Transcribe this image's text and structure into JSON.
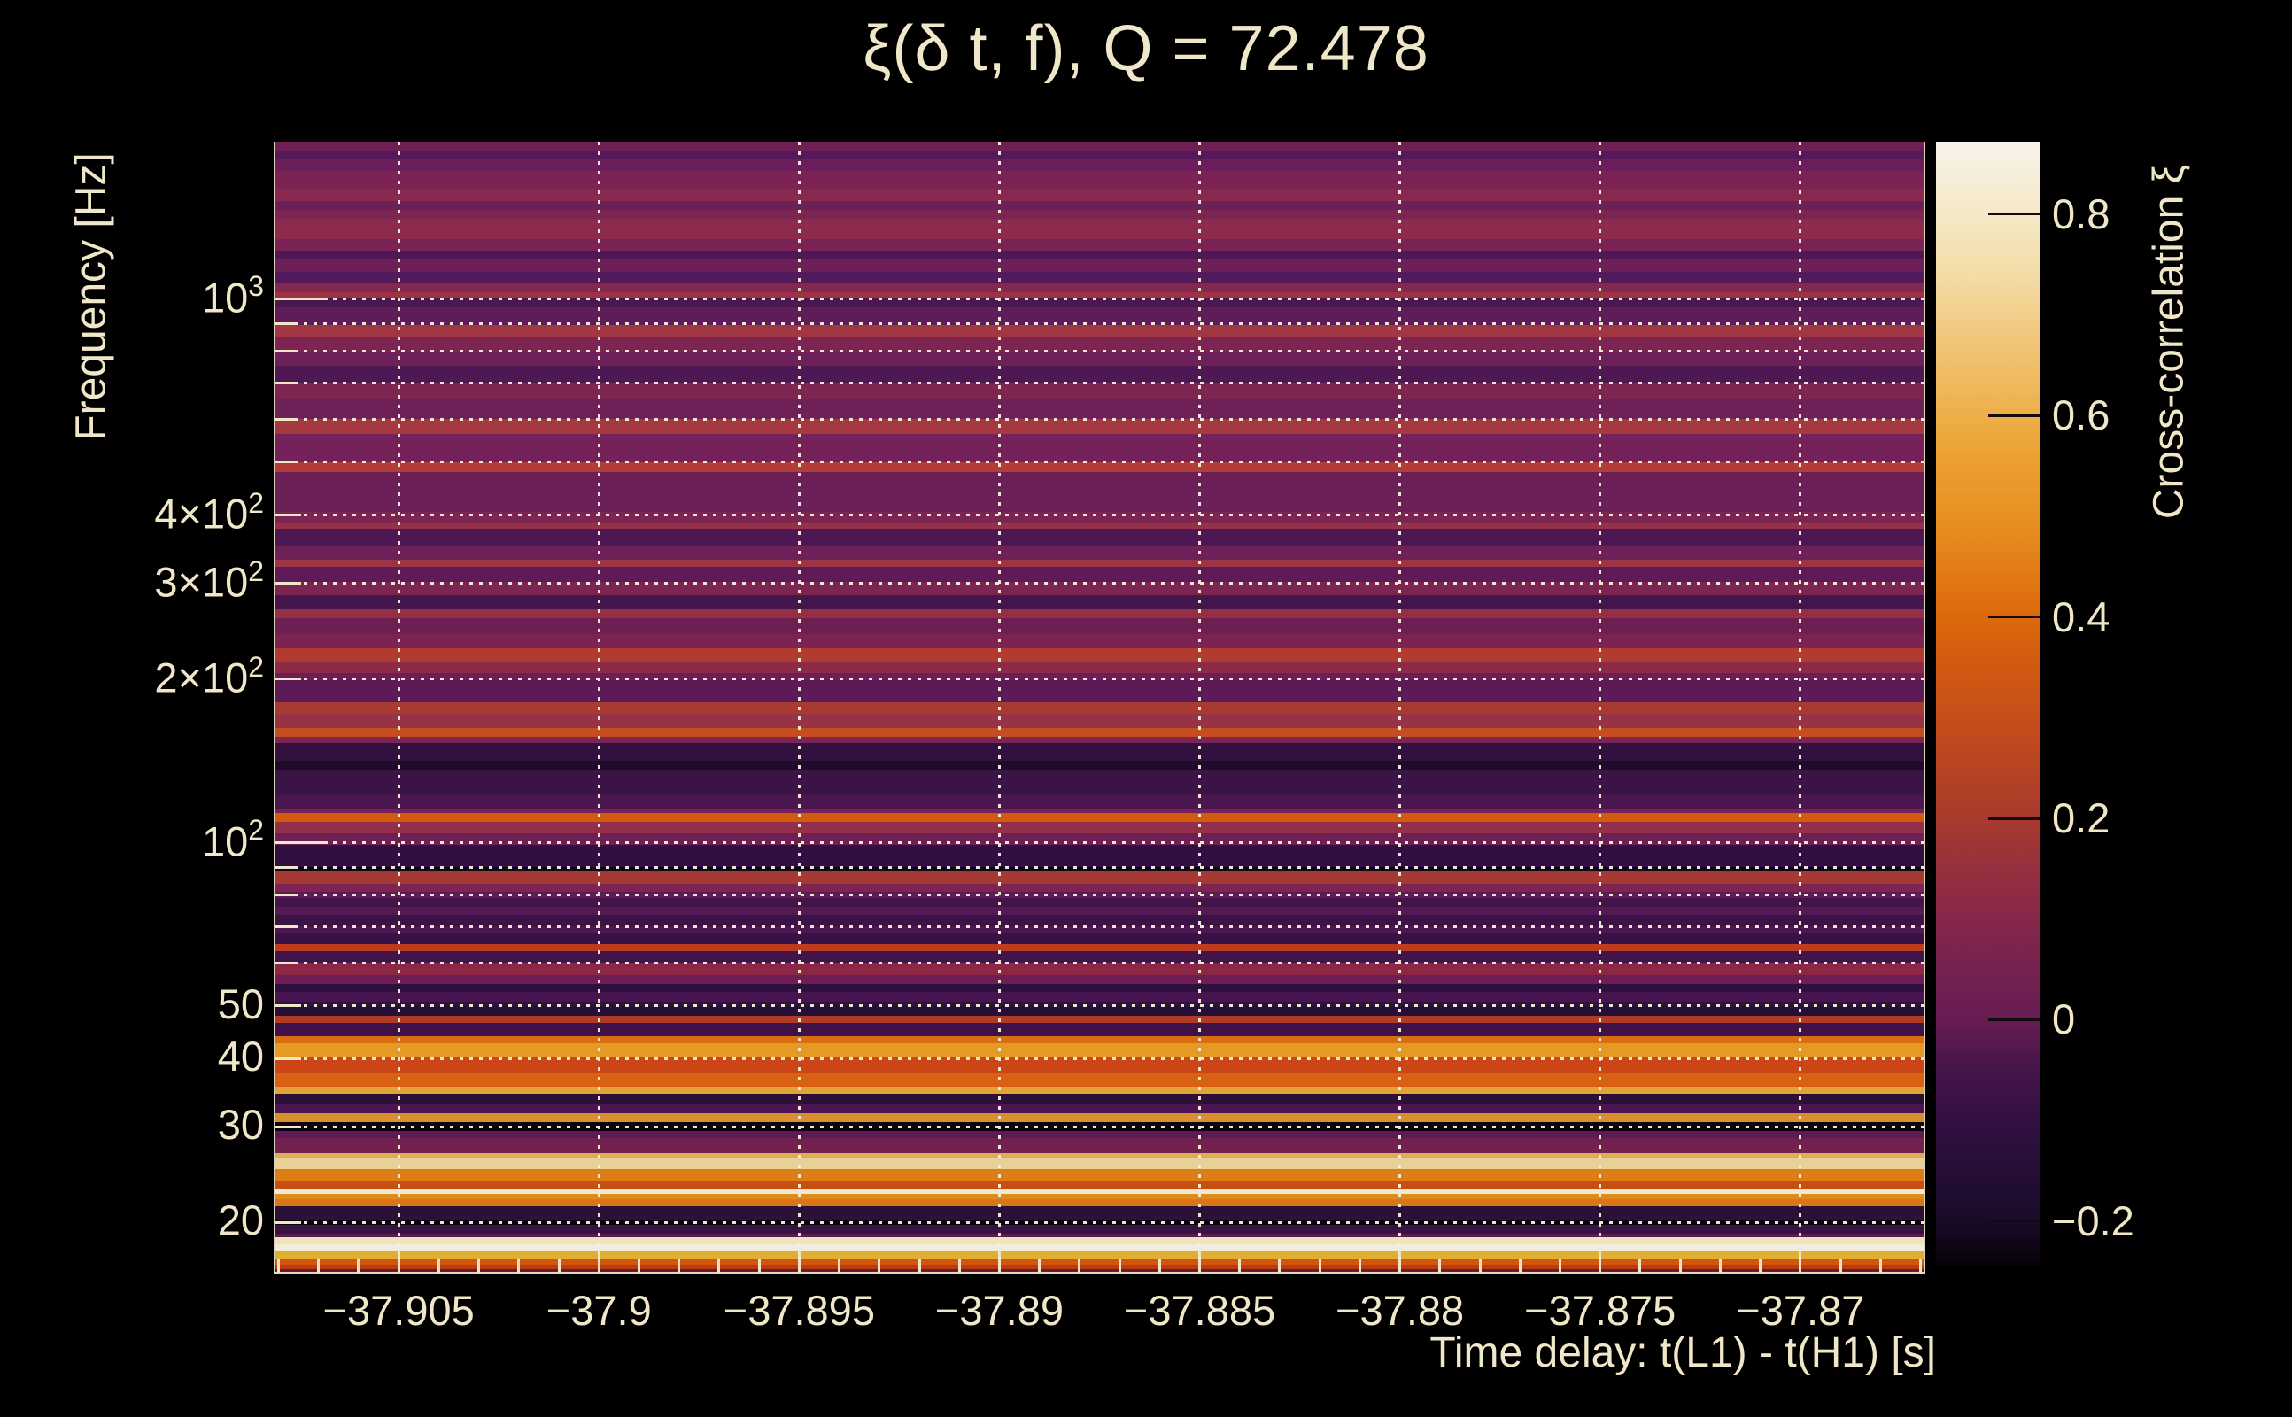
{
  "title": "ξ(δ t, f), Q = 72.478",
  "x_axis": {
    "label": "Time delay: t(L1) - t(H1) [s]",
    "range": [
      -37.9081,
      -37.8669
    ],
    "ticks": [
      {
        "value": -37.905,
        "label": "−37.905"
      },
      {
        "value": -37.9,
        "label": "−37.9"
      },
      {
        "value": -37.895,
        "label": "−37.895"
      },
      {
        "value": -37.89,
        "label": "−37.89"
      },
      {
        "value": -37.885,
        "label": "−37.885"
      },
      {
        "value": -37.88,
        "label": "−37.88"
      },
      {
        "value": -37.875,
        "label": "−37.875"
      },
      {
        "value": -37.87,
        "label": "−37.87"
      }
    ],
    "minor_tick_step": 0.001
  },
  "y_axis": {
    "label": "Frequency [Hz]",
    "scale": "log",
    "range": [
      16.17,
      1942
    ],
    "ticks": [
      {
        "value": 1000,
        "base": "10",
        "exp": "3"
      },
      {
        "value": 400,
        "base": "4×10",
        "exp": "2"
      },
      {
        "value": 300,
        "base": "3×10",
        "exp": "2"
      },
      {
        "value": 200,
        "base": "2×10",
        "exp": "2"
      },
      {
        "value": 100,
        "base": "10",
        "exp": "2"
      },
      {
        "value": 50,
        "base": "50",
        "exp": ""
      },
      {
        "value": 40,
        "base": "40",
        "exp": ""
      },
      {
        "value": 30,
        "base": "30",
        "exp": ""
      },
      {
        "value": 20,
        "base": "20",
        "exp": ""
      }
    ],
    "gridlines": [
      {
        "f": 1000,
        "kind": "decade"
      },
      {
        "f": 900,
        "kind": "minor"
      },
      {
        "f": 800,
        "kind": "minor"
      },
      {
        "f": 700,
        "kind": "minor"
      },
      {
        "f": 600,
        "kind": "minor"
      },
      {
        "f": 500,
        "kind": "minor"
      },
      {
        "f": 400,
        "kind": "major"
      },
      {
        "f": 300,
        "kind": "major"
      },
      {
        "f": 200,
        "kind": "major"
      },
      {
        "f": 100,
        "kind": "decade"
      },
      {
        "f": 90,
        "kind": "minor"
      },
      {
        "f": 80,
        "kind": "minor"
      },
      {
        "f": 70,
        "kind": "minor"
      },
      {
        "f": 60,
        "kind": "minor"
      },
      {
        "f": 50,
        "kind": "major"
      },
      {
        "f": 40,
        "kind": "major"
      },
      {
        "f": 30,
        "kind": "major"
      },
      {
        "f": 20,
        "kind": "major"
      }
    ]
  },
  "colorbar": {
    "label": "Cross-correlation ξ",
    "range": [
      -0.245,
      0.872
    ],
    "ticks": [
      {
        "value": 0.8,
        "label": "0.8"
      },
      {
        "value": 0.6,
        "label": "0.6"
      },
      {
        "value": 0.4,
        "label": "0.4"
      },
      {
        "value": 0.2,
        "label": "0.2"
      },
      {
        "value": 0.0,
        "label": "0"
      },
      {
        "value": -0.2,
        "label": "−0.2"
      }
    ],
    "gradient_stops": [
      {
        "frac": 0.0,
        "color": "#050206"
      },
      {
        "frac": 0.042,
        "color": "#1b0b2a"
      },
      {
        "frac": 0.12,
        "color": "#2e1040"
      },
      {
        "frac": 0.17,
        "color": "#431449"
      },
      {
        "frac": 0.22,
        "color": "#671c52"
      },
      {
        "frac": 0.3,
        "color": "#82264c"
      },
      {
        "frac": 0.36,
        "color": "#99313c"
      },
      {
        "frac": 0.4,
        "color": "#a93a2d"
      },
      {
        "frac": 0.47,
        "color": "#c04a1d"
      },
      {
        "frac": 0.54,
        "color": "#d35c10"
      },
      {
        "frac": 0.58,
        "color": "#dc6a0d"
      },
      {
        "frac": 0.65,
        "color": "#e68a1e"
      },
      {
        "frac": 0.72,
        "color": "#eca232"
      },
      {
        "frac": 0.76,
        "color": "#eeb04b"
      },
      {
        "frac": 0.83,
        "color": "#f1c97e"
      },
      {
        "frac": 0.88,
        "color": "#f3dca6"
      },
      {
        "frac": 0.936,
        "color": "#f5e9c6"
      },
      {
        "frac": 1.0,
        "color": "#f7f3ec"
      }
    ]
  },
  "chart_data": {
    "type": "heatmap",
    "title": "ξ(δ t, f), Q = 72.478",
    "xlabel": "Time delay: t(L1) - t(H1) [s]",
    "ylabel": "Frequency [Hz]",
    "x_range": [
      -37.9081,
      -37.8669
    ],
    "y_range_hz": [
      16.17,
      1942
    ],
    "value_label": "Cross-correlation ξ",
    "value_range": [
      -0.245,
      0.872
    ],
    "pattern": "horizontal frequency bands, approximately constant across time delay",
    "bands": [
      {
        "f_hi": 1942,
        "f_lo": 1871,
        "color": "#6e2055",
        "xi": 0.04
      },
      {
        "f_hi": 1871,
        "f_lo": 1802,
        "color": "#561959",
        "xi": -0.01
      },
      {
        "f_hi": 1802,
        "f_lo": 1716,
        "color": "#6a1f5a",
        "xi": 0.03
      },
      {
        "f_hi": 1716,
        "f_lo": 1592,
        "color": "#7c2355",
        "xi": 0.06
      },
      {
        "f_hi": 1592,
        "f_lo": 1511,
        "color": "#8a2950",
        "xi": 0.1
      },
      {
        "f_hi": 1511,
        "f_lo": 1455,
        "color": "#6d2058",
        "xi": 0.03
      },
      {
        "f_hi": 1455,
        "f_lo": 1402,
        "color": "#7e2453",
        "xi": 0.07
      },
      {
        "f_hi": 1402,
        "f_lo": 1286,
        "color": "#8c2b4e",
        "xi": 0.11
      },
      {
        "f_hi": 1286,
        "f_lo": 1224,
        "color": "#7a2355",
        "xi": 0.06
      },
      {
        "f_hi": 1224,
        "f_lo": 1179,
        "color": "#4e1856",
        "xi": -0.03
      },
      {
        "f_hi": 1179,
        "f_lo": 1119,
        "color": "#6c2057",
        "xi": 0.03
      },
      {
        "f_hi": 1119,
        "f_lo": 1066,
        "color": "#54195a",
        "xi": -0.01
      },
      {
        "f_hi": 1066,
        "f_lo": 1027,
        "color": "#83284f",
        "xi": 0.08
      },
      {
        "f_hi": 1027,
        "f_lo": 1000,
        "color": "#9c3245",
        "xi": 0.15
      },
      {
        "f_hi": 1000,
        "f_lo": 963,
        "color": "#4a1750",
        "xi": -0.04
      },
      {
        "f_hi": 963,
        "f_lo": 893,
        "color": "#5e1c59",
        "xi": 0.0
      },
      {
        "f_hi": 893,
        "f_lo": 851,
        "color": "#a03742",
        "xi": 0.17
      },
      {
        "f_hi": 851,
        "f_lo": 799,
        "color": "#7e2453",
        "xi": 0.07
      },
      {
        "f_hi": 799,
        "f_lo": 752,
        "color": "#6d2158",
        "xi": 0.03
      },
      {
        "f_hi": 752,
        "f_lo": 698,
        "color": "#4f1855",
        "xi": -0.03
      },
      {
        "f_hi": 698,
        "f_lo": 655,
        "color": "#7f2551",
        "xi": 0.07
      },
      {
        "f_hi": 655,
        "f_lo": 600,
        "color": "#6e2156",
        "xi": 0.03
      },
      {
        "f_hi": 600,
        "f_lo": 563,
        "color": "#a53840",
        "xi": 0.18
      },
      {
        "f_hi": 563,
        "f_lo": 500,
        "color": "#75225a",
        "xi": 0.05
      },
      {
        "f_hi": 500,
        "f_lo": 479,
        "color": "#b23c38",
        "xi": 0.21
      },
      {
        "f_hi": 479,
        "f_lo": 405,
        "color": "#6b2058",
        "xi": 0.03
      },
      {
        "f_hi": 405,
        "f_lo": 387,
        "color": "#7c2452",
        "xi": 0.06
      },
      {
        "f_hi": 387,
        "f_lo": 377,
        "color": "#973147",
        "xi": 0.14
      },
      {
        "f_hi": 377,
        "f_lo": 350,
        "color": "#4c1753",
        "xi": -0.03
      },
      {
        "f_hi": 350,
        "f_lo": 331,
        "color": "#6e2156",
        "xi": 0.03
      },
      {
        "f_hi": 331,
        "f_lo": 321,
        "color": "#9c3444",
        "xi": 0.15
      },
      {
        "f_hi": 321,
        "f_lo": 301,
        "color": "#5e1b57",
        "xi": 0.0
      },
      {
        "f_hi": 301,
        "f_lo": 285,
        "color": "#7c2452",
        "xi": 0.06
      },
      {
        "f_hi": 285,
        "f_lo": 268,
        "color": "#45154e",
        "xi": -0.05
      },
      {
        "f_hi": 268,
        "f_lo": 258,
        "color": "#933044",
        "xi": 0.13
      },
      {
        "f_hi": 258,
        "f_lo": 241,
        "color": "#6e2054",
        "xi": 0.03
      },
      {
        "f_hi": 241,
        "f_lo": 227,
        "color": "#7c2451",
        "xi": 0.06
      },
      {
        "f_hi": 227,
        "f_lo": 215,
        "color": "#b13b2e",
        "xi": 0.22
      },
      {
        "f_hi": 215,
        "f_lo": 205,
        "color": "#8c2a48",
        "xi": 0.11
      },
      {
        "f_hi": 205,
        "f_lo": 199,
        "color": "#6d1f55",
        "xi": 0.03
      },
      {
        "f_hi": 199,
        "f_lo": 181,
        "color": "#5c1a56",
        "xi": 0.0
      },
      {
        "f_hi": 181,
        "f_lo": 172,
        "color": "#a83a34",
        "xi": 0.19
      },
      {
        "f_hi": 172,
        "f_lo": 162,
        "color": "#983246",
        "xi": 0.14
      },
      {
        "f_hi": 162,
        "f_lo": 156,
        "color": "#c54e20",
        "xi": 0.3
      },
      {
        "f_hi": 156,
        "f_lo": 152,
        "color": "#7c2452",
        "xi": 0.06
      },
      {
        "f_hi": 152,
        "f_lo": 141,
        "color": "#321141",
        "xi": -0.09
      },
      {
        "f_hi": 141,
        "f_lo": 136,
        "color": "#1e0b28",
        "xi": -0.15
      },
      {
        "f_hi": 136,
        "f_lo": 122,
        "color": "#3a1347",
        "xi": -0.07
      },
      {
        "f_hi": 122,
        "f_lo": 115,
        "color": "#4c1751",
        "xi": -0.03
      },
      {
        "f_hi": 115,
        "f_lo": 113,
        "color": "#72215a",
        "xi": 0.04
      },
      {
        "f_hi": 113,
        "f_lo": 109,
        "color": "#d2590e",
        "xi": 0.4
      },
      {
        "f_hi": 109,
        "f_lo": 104,
        "color": "#913048",
        "xi": 0.12
      },
      {
        "f_hi": 104,
        "f_lo": 99,
        "color": "#6e2055",
        "xi": 0.03
      },
      {
        "f_hi": 99,
        "f_lo": 90,
        "color": "#2f1040",
        "xi": -0.1
      },
      {
        "f_hi": 90,
        "f_lo": 88.7,
        "color": "#12061a",
        "xi": -0.2
      },
      {
        "f_hi": 88.7,
        "f_lo": 84,
        "color": "#a53a35",
        "xi": 0.18
      },
      {
        "f_hi": 84,
        "f_lo": 81,
        "color": "#7e2452",
        "xi": 0.07
      },
      {
        "f_hi": 81,
        "f_lo": 79,
        "color": "#5f1b56",
        "xi": 0.0
      },
      {
        "f_hi": 79,
        "f_lo": 76,
        "color": "#431448",
        "xi": -0.06
      },
      {
        "f_hi": 76,
        "f_lo": 73.5,
        "color": "#551a54",
        "xi": -0.01
      },
      {
        "f_hi": 73.5,
        "f_lo": 70,
        "color": "#3c1347",
        "xi": -0.08
      },
      {
        "f_hi": 70,
        "f_lo": 68,
        "color": "#4f1750",
        "xi": -0.03
      },
      {
        "f_hi": 68,
        "f_lo": 65,
        "color": "#381244",
        "xi": -0.08
      },
      {
        "f_hi": 65,
        "f_lo": 63,
        "color": "#bf3b1e",
        "xi": 0.26
      },
      {
        "f_hi": 63,
        "f_lo": 60,
        "color": "#41144b",
        "xi": -0.06
      },
      {
        "f_hi": 60,
        "f_lo": 57,
        "color": "#8e2746",
        "xi": 0.11
      },
      {
        "f_hi": 57,
        "f_lo": 55,
        "color": "#6f1d52",
        "xi": 0.03
      },
      {
        "f_hi": 55,
        "f_lo": 53,
        "color": "#2c1040",
        "xi": -0.11
      },
      {
        "f_hi": 53,
        "f_lo": 51,
        "color": "#471550",
        "xi": -0.04
      },
      {
        "f_hi": 51,
        "f_lo": 50,
        "color": "#31113f",
        "xi": -0.1
      },
      {
        "f_hi": 50,
        "f_lo": 48,
        "color": "#271038",
        "xi": -0.12
      },
      {
        "f_hi": 48,
        "f_lo": 46.5,
        "color": "#b03a24",
        "xi": 0.21
      },
      {
        "f_hi": 46.5,
        "f_lo": 44,
        "color": "#3f1349",
        "xi": -0.07
      },
      {
        "f_hi": 44,
        "f_lo": 42.7,
        "color": "#d96d12",
        "xi": 0.42
      },
      {
        "f_hi": 42.7,
        "f_lo": 40.4,
        "color": "#e59a24",
        "xi": 0.55
      },
      {
        "f_hi": 40.4,
        "f_lo": 37.6,
        "color": "#cc4517",
        "xi": 0.31
      },
      {
        "f_hi": 37.6,
        "f_lo": 35.5,
        "color": "#d96113",
        "xi": 0.4
      },
      {
        "f_hi": 35.5,
        "f_lo": 34.5,
        "color": "#e3a338",
        "xi": 0.56
      },
      {
        "f_hi": 34.5,
        "f_lo": 33,
        "color": "#2d1039",
        "xi": -0.11
      },
      {
        "f_hi": 33,
        "f_lo": 31.7,
        "color": "#4a1550",
        "xi": -0.04
      },
      {
        "f_hi": 31.7,
        "f_lo": 30.6,
        "color": "#d98f2b",
        "xi": 0.5
      },
      {
        "f_hi": 30.6,
        "f_lo": 29.5,
        "color": "#0a040f",
        "xi": -0.22
      },
      {
        "f_hi": 29.5,
        "f_lo": 28.6,
        "color": "#5d1a55",
        "xi": 0.0
      },
      {
        "f_hi": 28.6,
        "f_lo": 26.8,
        "color": "#71224f",
        "xi": 0.05
      },
      {
        "f_hi": 26.8,
        "f_lo": 26.2,
        "color": "#dbaf54",
        "xi": 0.6
      },
      {
        "f_hi": 26.2,
        "f_lo": 25.1,
        "color": "#e8d098",
        "xi": 0.68
      },
      {
        "f_hi": 25.1,
        "f_lo": 23.9,
        "color": "#dd7d15",
        "xi": 0.45
      },
      {
        "f_hi": 23.9,
        "f_lo": 23.0,
        "color": "#c94e12",
        "xi": 0.31
      },
      {
        "f_hi": 23.0,
        "f_lo": 22.6,
        "color": "#f2e9d3",
        "xi": 0.8
      },
      {
        "f_hi": 22.6,
        "f_lo": 22.1,
        "color": "#e08c1c",
        "xi": 0.48
      },
      {
        "f_hi": 22.1,
        "f_lo": 21.4,
        "color": "#d97716",
        "xi": 0.44
      },
      {
        "f_hi": 21.4,
        "f_lo": 20.2,
        "color": "#2b1038",
        "xi": -0.11
      },
      {
        "f_hi": 20.2,
        "f_lo": 19.8,
        "color": "#0a0410",
        "xi": -0.23
      },
      {
        "f_hi": 19.8,
        "f_lo": 19.1,
        "color": "#371243",
        "xi": -0.08
      },
      {
        "f_hi": 19.1,
        "f_lo": 18.8,
        "color": "#5d1a50",
        "xi": 0.0
      },
      {
        "f_hi": 18.8,
        "f_lo": 18.2,
        "color": "#eee3bb",
        "xi": 0.72
      },
      {
        "f_hi": 18.2,
        "f_lo": 17.7,
        "color": "#f2ecd9",
        "xi": 0.8
      },
      {
        "f_hi": 17.7,
        "f_lo": 17.1,
        "color": "#dfaf33",
        "xi": 0.6
      },
      {
        "f_hi": 17.1,
        "f_lo": 16.7,
        "color": "#d2570e",
        "xi": 0.37
      },
      {
        "f_hi": 16.7,
        "f_lo": 16.4,
        "color": "#bc3a14",
        "xi": 0.24
      },
      {
        "f_hi": 16.4,
        "f_lo": 16.17,
        "color": "#6b1a33",
        "xi": 0.08
      }
    ]
  }
}
